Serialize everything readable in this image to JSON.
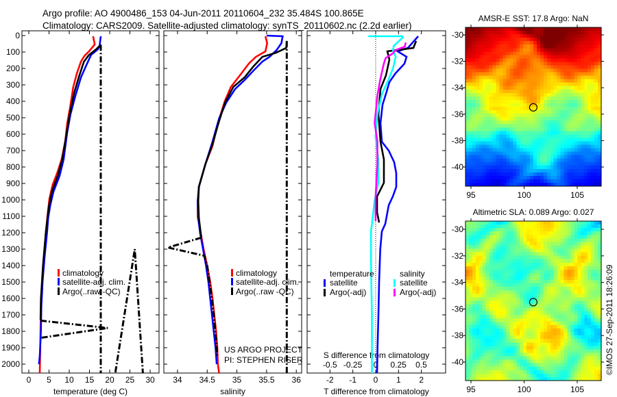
{
  "header": {
    "line1": "Argo profile: AO 4900486_153 04-Jun-2011 20110604_232 35.484S 100.865E",
    "line2": "Climatology: CARS2009. Satellite-adjusted climatology: synTS_20110602.nc (2.2d earlier)"
  },
  "credit": "©IMOS 27-Sep-2011 18:26:09",
  "project": {
    "line1": "US ARGO PROJECT",
    "line2": "PI: STEPHEN RISER"
  },
  "colors": {
    "climatology": "#ff0000",
    "satellite": "#0000ff",
    "argo": "#000000",
    "sal_satellite": "#00ffff",
    "sal_argo": "#ff00ff"
  },
  "chart_data": [
    {
      "type": "line",
      "xlabel": "temperature (deg C)",
      "ylabel": "",
      "xlim": [
        -1.7,
        32.2
      ],
      "ylim": [
        2054,
        0
      ],
      "xticks": [
        "0",
        "5",
        "10",
        "15",
        "20",
        "25",
        "30"
      ],
      "yticks": [
        "0",
        "100",
        "200",
        "300",
        "400",
        "500",
        "600",
        "700",
        "800",
        "900",
        "1000",
        "1100",
        "1200",
        "1300",
        "1400",
        "1500",
        "1600",
        "1700",
        "1800",
        "1900",
        "2000"
      ],
      "legend": [
        "climatology",
        "satellite-adj. clim.",
        "Argo(..raw -QC)"
      ],
      "series": [
        {
          "name": "climatology",
          "color": "#ff0000",
          "points": [
            [
              15.9,
              4
            ],
            [
              16.3,
              54
            ],
            [
              14.9,
              96
            ],
            [
              13.7,
              125
            ],
            [
              12.9,
              158
            ],
            [
              11.9,
              229
            ],
            [
              11.0,
              312
            ],
            [
              10.2,
              437
            ],
            [
              9.5,
              533
            ],
            [
              9.0,
              646
            ],
            [
              8.1,
              754
            ],
            [
              7.0,
              838
            ],
            [
              5.9,
              908
            ],
            [
              5.1,
              992
            ],
            [
              4.6,
              1100
            ],
            [
              4.2,
              1200
            ],
            [
              3.7,
              1350
            ],
            [
              3.3,
              1500
            ],
            [
              3.0,
              1650
            ],
            [
              2.9,
              1800
            ],
            [
              2.8,
              1950
            ],
            [
              2.7,
              2054
            ]
          ]
        },
        {
          "name": "satellite-adj. clim.",
          "color": "#0000ff",
          "points": [
            [
              17.8,
              4
            ],
            [
              17.5,
              62
            ],
            [
              17.1,
              83
            ],
            [
              15.4,
              117
            ],
            [
              14.1,
              187
            ],
            [
              12.9,
              254
            ],
            [
              11.5,
              367
            ],
            [
              10.3,
              479
            ],
            [
              9.5,
              587
            ],
            [
              8.6,
              754
            ],
            [
              7.6,
              854
            ],
            [
              6.1,
              950
            ],
            [
              5.3,
              1033
            ],
            [
              4.8,
              1110
            ],
            [
              4.5,
              1200
            ],
            [
              3.9,
              1350
            ],
            [
              3.4,
              1500
            ],
            [
              3.1,
              1650
            ],
            [
              3.0,
              1800
            ],
            [
              2.7,
              1950
            ],
            [
              2.5,
              2000
            ]
          ]
        },
        {
          "name": "Argo",
          "color": "#000000",
          "points": [
            [
              17.6,
              60
            ],
            [
              16.8,
              80
            ],
            [
              14.8,
              120
            ],
            [
              13.6,
              160
            ],
            [
              12.4,
              250
            ],
            [
              11.2,
              350
            ],
            [
              10.1,
              480
            ],
            [
              9.3,
              600
            ],
            [
              8.3,
              750
            ],
            [
              7.2,
              850
            ],
            [
              5.7,
              950
            ],
            [
              4.9,
              1050
            ],
            [
              4.2,
              1200
            ],
            [
              3.5,
              1400
            ],
            [
              3.0,
              1600
            ],
            [
              2.9,
              1730
            ]
          ]
        },
        {
          "name": "Argo raw",
          "color": "#000000",
          "dash": true,
          "segments": [
            [
              [
                17.8,
                55
              ],
              [
                17.8,
                2054
              ]
            ],
            [
              [
                2.9,
                1735
              ],
              [
                19.5,
                1780
              ],
              [
                2.9,
                1840
              ]
            ],
            [
              [
                21.4,
                2050
              ],
              [
                26.2,
                1300
              ],
              [
                28.2,
                2054
              ]
            ]
          ]
        }
      ]
    },
    {
      "type": "line",
      "xlabel": "salinity",
      "xlim": [
        33.77,
        36.09
      ],
      "ylim": [
        2054,
        0
      ],
      "xticks": [
        "34",
        "34.5",
        "35",
        "35.5",
        "36"
      ],
      "legend": [
        "climatology",
        "satellite-adj. clim.",
        "Argo(..raw -QC)"
      ],
      "series": [
        {
          "name": "climatology",
          "color": "#ff0000",
          "points": [
            [
              35.48,
              4
            ],
            [
              35.51,
              46
            ],
            [
              35.48,
              96
            ],
            [
              35.32,
              129
            ],
            [
              35.2,
              171
            ],
            [
              35.05,
              242
            ],
            [
              34.9,
              312
            ],
            [
              34.8,
              396
            ],
            [
              34.68,
              533
            ],
            [
              34.59,
              671
            ],
            [
              34.47,
              783
            ],
            [
              34.36,
              921
            ],
            [
              34.34,
              1004
            ],
            [
              34.34,
              1104
            ],
            [
              34.39,
              1200
            ],
            [
              34.44,
              1300
            ],
            [
              34.5,
              1400
            ],
            [
              34.55,
              1500
            ],
            [
              34.59,
              1600
            ],
            [
              34.62,
              1700
            ],
            [
              34.65,
              1800
            ],
            [
              34.67,
              1900
            ],
            [
              34.68,
              2000
            ],
            [
              34.7,
              2054
            ]
          ]
        },
        {
          "name": "satellite-adj. clim.",
          "color": "#0000ff",
          "points": [
            [
              35.5,
              0
            ],
            [
              35.77,
              4
            ],
            [
              35.75,
              46
            ],
            [
              35.67,
              88
            ],
            [
              35.55,
              129
            ],
            [
              35.43,
              158
            ],
            [
              35.28,
              213
            ],
            [
              35.13,
              271
            ],
            [
              34.97,
              325
            ],
            [
              34.82,
              408
            ],
            [
              34.7,
              504
            ],
            [
              34.59,
              646
            ],
            [
              34.47,
              783
            ],
            [
              34.36,
              921
            ],
            [
              34.34,
              1010
            ],
            [
              34.35,
              1110
            ],
            [
              34.38,
              1200
            ],
            [
              34.43,
              1300
            ],
            [
              34.48,
              1400
            ],
            [
              34.52,
              1500
            ],
            [
              34.58,
              1700
            ],
            [
              34.64,
              1900
            ],
            [
              34.66,
              2000
            ]
          ]
        },
        {
          "name": "Argo",
          "color": "#000000",
          "points": [
            [
              35.84,
              33
            ],
            [
              35.83,
              75
            ],
            [
              35.66,
              104
            ],
            [
              35.43,
              129
            ],
            [
              35.28,
              187
            ],
            [
              35.13,
              254
            ],
            [
              34.94,
              312
            ],
            [
              34.8,
              408
            ],
            [
              34.69,
              533
            ],
            [
              34.59,
              660
            ],
            [
              34.47,
              783
            ],
            [
              34.36,
              921
            ],
            [
              34.35,
              1010
            ],
            [
              34.36,
              1110
            ],
            [
              34.4,
              1230
            ]
          ]
        },
        {
          "name": "Argo raw",
          "color": "#000000",
          "dash": true,
          "segments": [
            [
              [
                35.84,
                33
              ],
              [
                35.84,
                2054
              ]
            ],
            [
              [
                34.4,
                1230
              ],
              [
                33.84,
                1290
              ],
              [
                34.45,
                1340
              ],
              [
                34.5,
                1400
              ],
              [
                34.56,
                1550
              ],
              [
                34.61,
                1700
              ],
              [
                34.65,
                1850
              ],
              [
                34.67,
                1960
              ]
            ]
          ]
        }
      ]
    },
    {
      "type": "line",
      "xlabel": "T difference from climatology",
      "xlabel2": "S difference from climatology",
      "xlim": [
        -3.0,
        3.06
      ],
      "x2lim": [
        -0.75,
        0.767
      ],
      "ylim": [
        2054,
        0
      ],
      "xticks": [
        "-2",
        "-1",
        "0",
        "1",
        "2"
      ],
      "x2ticks": [
        "-0.5",
        "-0.25",
        "0",
        "0.25",
        "0.5"
      ],
      "legend": {
        "temperature": "temperature",
        "salinity": "salinity",
        "satellite": "satellite",
        "argo": "Argo(-adj)"
      },
      "series": [
        {
          "name": "T satellite",
          "axis": "T",
          "color": "#0000ff",
          "points": [
            [
              1.86,
              4
            ],
            [
              1.41,
              75
            ],
            [
              0.96,
              96
            ],
            [
              1.35,
              129
            ],
            [
              1.26,
              171
            ],
            [
              0.87,
              229
            ],
            [
              0.6,
              283
            ],
            [
              0.45,
              354
            ],
            [
              0.3,
              421
            ],
            [
              0.21,
              533
            ],
            [
              0.27,
              646
            ],
            [
              0.57,
              700
            ],
            [
              0.81,
              771
            ],
            [
              0.9,
              838
            ],
            [
              0.9,
              921
            ],
            [
              0.75,
              979
            ],
            [
              0.57,
              1033
            ],
            [
              0.42,
              1146
            ],
            [
              0.27,
              1192
            ],
            [
              0.2,
              1300
            ],
            [
              0.15,
              1500
            ],
            [
              0.12,
              1700
            ],
            [
              0.08,
              1900
            ],
            [
              0.06,
              2054
            ]
          ]
        },
        {
          "name": "T Argo(-adj)",
          "axis": "T",
          "color": "#000000",
          "points": [
            [
              1.77,
              33
            ],
            [
              1.65,
              75
            ],
            [
              0.51,
              96
            ],
            [
              0.6,
              146
            ],
            [
              0.45,
              242
            ],
            [
              0.21,
              325
            ],
            [
              0.12,
              479
            ],
            [
              0.21,
              646
            ],
            [
              0.36,
              754
            ],
            [
              0.36,
              896
            ],
            [
              0.06,
              979
            ],
            [
              0.06,
              1075
            ],
            [
              0.15,
              1138
            ]
          ]
        },
        {
          "name": "S satellite",
          "axis": "S",
          "color": "#00ffff",
          "points": [
            [
              -0.08,
              4
            ],
            [
              0.29,
              4
            ],
            [
              0.3,
              10
            ],
            [
              0.2,
              62
            ],
            [
              0.19,
              88
            ],
            [
              0.22,
              129
            ],
            [
              0.19,
              200
            ],
            [
              0.14,
              271
            ],
            [
              0.07,
              354
            ],
            [
              0.02,
              479
            ],
            [
              0.0,
              617
            ],
            [
              0.03,
              754
            ],
            [
              0.03,
              896
            ],
            [
              -0.01,
              1004
            ],
            [
              -0.05,
              1192
            ],
            [
              -0.05,
              1400
            ],
            [
              -0.04,
              1700
            ],
            [
              -0.04,
              2054
            ]
          ]
        },
        {
          "name": "S Argo(-adj)",
          "axis": "S",
          "color": "#ff00ff",
          "points": [
            [
              0.33,
              42
            ],
            [
              0.32,
              67
            ],
            [
              0.22,
              88
            ],
            [
              0.19,
              108
            ],
            [
              0.11,
              137
            ],
            [
              0.09,
              171
            ],
            [
              0.05,
              271
            ],
            [
              0.02,
              367
            ],
            [
              -0.01,
              533
            ],
            [
              0.02,
              646
            ],
            [
              0.02,
              783
            ],
            [
              0.0,
              979
            ],
            [
              0.0,
              1129
            ]
          ]
        }
      ]
    },
    {
      "type": "heatmap",
      "title": "AMSR-E SST: 17.8 Argo: NaN",
      "xticks": [
        "95",
        "100",
        "105"
      ],
      "yticks": [
        "-30",
        "-32",
        "-34",
        "-36",
        "-38",
        "-40"
      ],
      "xlim": [
        94.5,
        107.2
      ],
      "ylim": [
        -41.4,
        -29.4
      ],
      "marker": {
        "lon": 100.865,
        "lat": -35.484
      },
      "colormap": "jet"
    },
    {
      "type": "heatmap",
      "title": "Altimetric SLA: 0.089 Argo: 0.027",
      "xticks": [
        "95",
        "100",
        "105"
      ],
      "yticks": [
        "-30",
        "-32",
        "-34",
        "-36",
        "-38",
        "-40"
      ],
      "xlim": [
        94.5,
        107.2
      ],
      "ylim": [
        -41.4,
        -29.4
      ],
      "marker": {
        "lon": 100.865,
        "lat": -35.484
      },
      "colormap": "jet"
    }
  ]
}
